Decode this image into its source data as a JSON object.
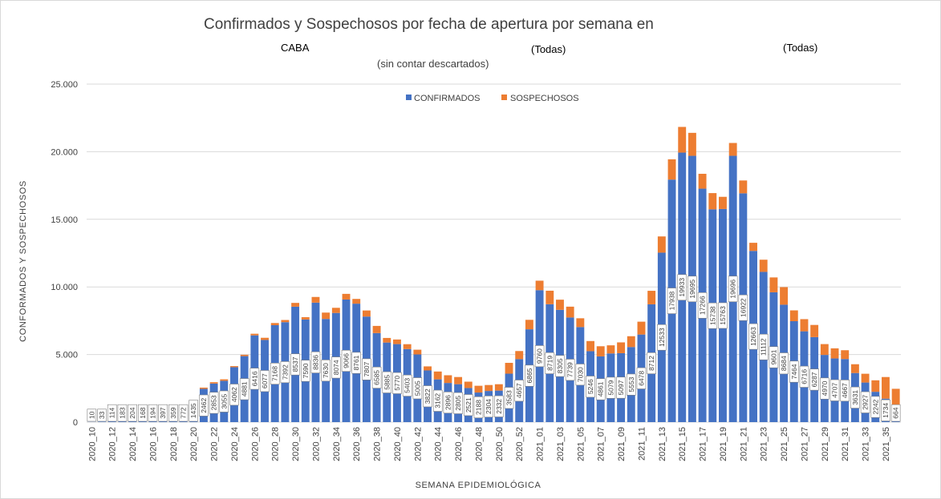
{
  "header": {
    "title": "Confirmados y Sospechosos por fecha de apertura por semana en",
    "filter_region": "CABA",
    "filter_1": "(Todas)",
    "filter_2": "(Todas)",
    "subtitle": "(sin contar descartados)"
  },
  "chart_data": {
    "type": "bar",
    "stacked": true,
    "xlabel": "SEMANA EPIDEMIOLÓGICA",
    "ylabel": "CONFORMADOS Y SOSPECHOSOS",
    "ylim": [
      0,
      25000
    ],
    "yticks": [
      0,
      5000,
      10000,
      15000,
      20000,
      25000
    ],
    "ytick_labels": [
      "0",
      "5.000",
      "10.000",
      "15.000",
      "20.000",
      "25.000"
    ],
    "grid": true,
    "legend_position": "top-center",
    "colors": {
      "confirmados": "#4472C4",
      "sospechosos": "#ED7D31",
      "grid": "#d9d9d9"
    },
    "categories": [
      "2020_10",
      "2020_11",
      "2020_12",
      "2020_13",
      "2020_14",
      "2020_15",
      "2020_16",
      "2020_17",
      "2020_18",
      "2020_19",
      "2020_20",
      "2020_21",
      "2020_22",
      "2020_23",
      "2020_24",
      "2020_25",
      "2020_26",
      "2020_27",
      "2020_28",
      "2020_29",
      "2020_30",
      "2020_31",
      "2020_32",
      "2020_33",
      "2020_34",
      "2020_35",
      "2020_36",
      "2020_37",
      "2020_38",
      "2020_39",
      "2020_40",
      "2020_41",
      "2020_42",
      "2020_43",
      "2020_44",
      "2020_45",
      "2020_46",
      "2020_47",
      "2020_48",
      "2020_49",
      "2020_50",
      "2020_51",
      "2020_52",
      "2020_53",
      "2021_01",
      "2021_02",
      "2021_03",
      "2021_04",
      "2021_05",
      "2021_06",
      "2021_07",
      "2021_08",
      "2021_09",
      "2021_10",
      "2021_11",
      "2021_12",
      "2021_13",
      "2021_14",
      "2021_15",
      "2021_16",
      "2021_17",
      "2021_18",
      "2021_19",
      "2021_20",
      "2021_21",
      "2021_22",
      "2021_23",
      "2021_24",
      "2021_25",
      "2021_26",
      "2021_27",
      "2021_28",
      "2021_29",
      "2021_30",
      "2021_31",
      "2021_32",
      "2021_33",
      "2021_34",
      "2021_35",
      "2021_36"
    ],
    "tick_labels": [
      "2020_10",
      "",
      "2020_12",
      "",
      "2020_14",
      "",
      "2020_16",
      "",
      "2020_18",
      "",
      "2020_20",
      "",
      "2020_22",
      "",
      "2020_24",
      "",
      "2020_26",
      "",
      "2020_28",
      "",
      "2020_30",
      "",
      "2020_32",
      "",
      "2020_34",
      "",
      "2020_36",
      "",
      "2020_38",
      "",
      "2020_40",
      "",
      "2020_42",
      "",
      "2020_44",
      "",
      "2020_46",
      "",
      "2020_48",
      "",
      "2020_50",
      "",
      "2020_52",
      "",
      "2021_01",
      "",
      "2021_03",
      "",
      "2021_05",
      "",
      "2021_07",
      "",
      "2021_09",
      "",
      "2021_11",
      "",
      "2021_13",
      "",
      "2021_15",
      "",
      "2021_17",
      "",
      "2021_19",
      "",
      "2021_21",
      "",
      "2021_23",
      "",
      "2021_25",
      "",
      "2021_27",
      "",
      "2021_29",
      "",
      "2021_31",
      "",
      "2021_33",
      "",
      "2021_35",
      ""
    ],
    "series": [
      {
        "name": "CONFIRMADOS",
        "values": [
          10,
          33,
          114,
          183,
          204,
          168,
          194,
          397,
          359,
          772,
          1435,
          2462,
          2853,
          3055,
          4062,
          4881,
          6416,
          6077,
          7168,
          7392,
          8537,
          7590,
          8836,
          7630,
          8074,
          9066,
          8761,
          7807,
          6585,
          5885,
          5770,
          5403,
          5005,
          3822,
          3162,
          2896,
          2805,
          2521,
          2188,
          2304,
          2332,
          3583,
          4657,
          6865,
          9760,
          8719,
          8305,
          7739,
          7030,
          5246,
          4861,
          5079,
          5097,
          5553,
          6478,
          8712,
          12533,
          17938,
          19933,
          19695,
          17266,
          15738,
          15763,
          19696,
          16922,
          12663,
          11112,
          9601,
          8684,
          7464,
          6716,
          6287,
          4970,
          4707,
          4667,
          3631,
          2927,
          2242,
          1734,
          664
        ]
      },
      {
        "name": "SOSPECHOSOS",
        "values": [
          0,
          0,
          0,
          0,
          0,
          0,
          0,
          0,
          0,
          50,
          70,
          90,
          100,
          110,
          80,
          100,
          120,
          160,
          160,
          160,
          280,
          170,
          420,
          470,
          380,
          420,
          350,
          450,
          530,
          340,
          340,
          360,
          350,
          300,
          580,
          570,
          530,
          470,
          500,
          440,
          470,
          800,
          600,
          700,
          700,
          1000,
          750,
          800,
          650,
          750,
          750,
          600,
          800,
          800,
          950,
          1000,
          1200,
          1500,
          1900,
          1700,
          1100,
          1200,
          900,
          950,
          950,
          600,
          900,
          1100,
          1300,
          800,
          900,
          900,
          800,
          750,
          650,
          650,
          650,
          850,
          1600,
          1800
        ]
      }
    ]
  }
}
